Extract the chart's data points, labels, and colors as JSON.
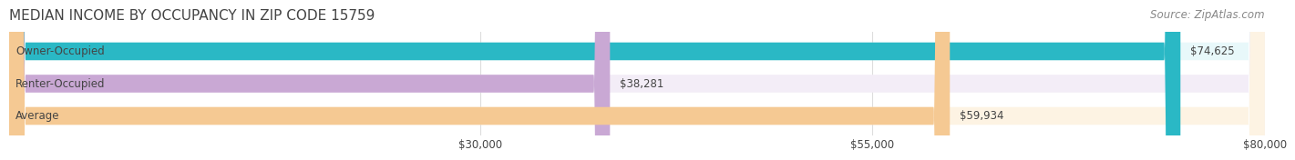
{
  "title": "MEDIAN INCOME BY OCCUPANCY IN ZIP CODE 15759",
  "source": "Source: ZipAtlas.com",
  "categories": [
    "Owner-Occupied",
    "Renter-Occupied",
    "Average"
  ],
  "values": [
    74625,
    38281,
    59934
  ],
  "bar_colors": [
    "#2ab8c5",
    "#c9a8d4",
    "#f5c993"
  ],
  "bar_bg_colors": [
    "#e8f8fa",
    "#f3edf7",
    "#fdf3e3"
  ],
  "value_labels": [
    "$74,625",
    "$38,281",
    "$59,934"
  ],
  "xlim": [
    0,
    80000
  ],
  "xticks": [
    30000,
    55000,
    80000
  ],
  "xtick_labels": [
    "$30,000",
    "$55,000",
    "$80,000"
  ],
  "title_fontsize": 11,
  "source_fontsize": 8.5,
  "label_fontsize": 8.5,
  "value_fontsize": 8.5,
  "bar_height": 0.55,
  "background_color": "#ffffff",
  "title_color": "#444444",
  "source_color": "#888888",
  "text_color": "#444444",
  "grid_color": "#dddddd"
}
